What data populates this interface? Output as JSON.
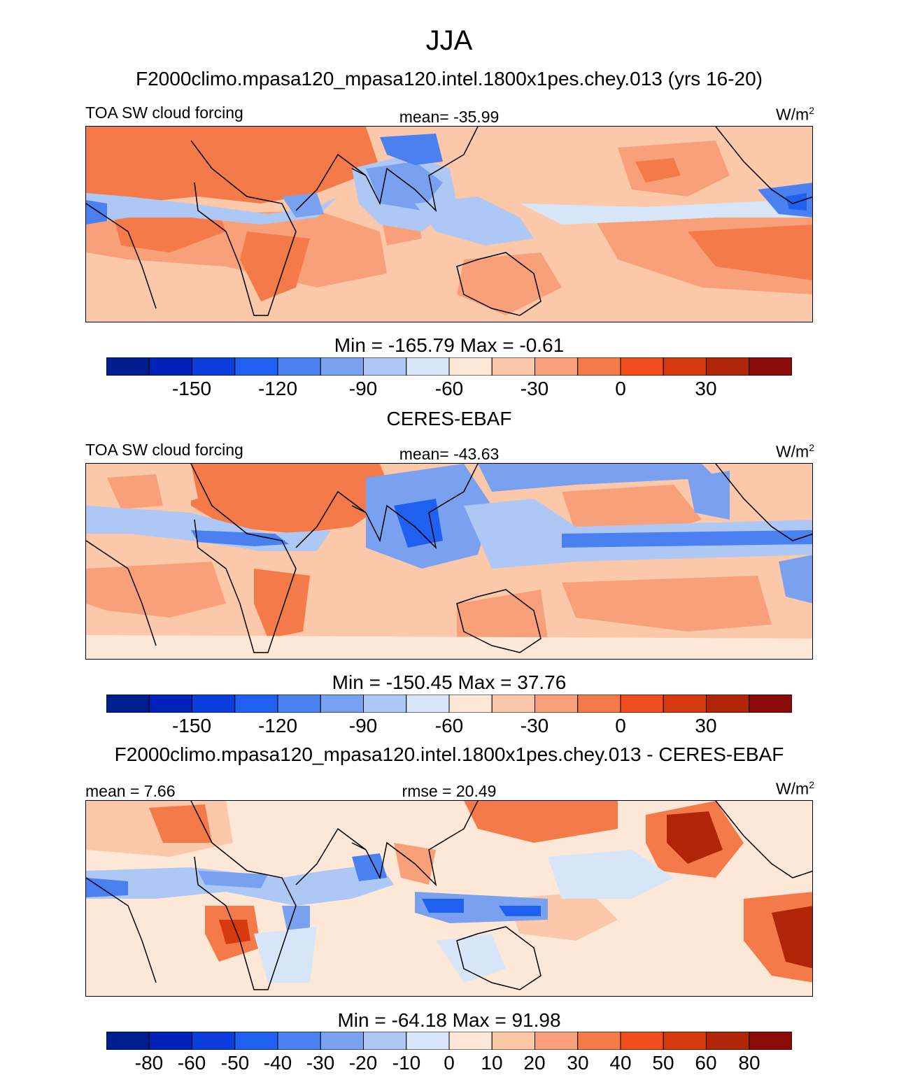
{
  "title": "JJA",
  "panels": [
    {
      "header": "F2000climo.mpasa120_mpasa120.intel.1800x1pes.chey.013 (yrs 16-20)",
      "left_label": "TOA SW cloud forcing",
      "center_label": "mean= -35.99",
      "units": "W/m",
      "units_sup": "2",
      "minmax": "Min = -165.79 Max =  -0.61"
    },
    {
      "header": "CERES-EBAF",
      "left_label": "TOA SW cloud forcing",
      "center_label": "mean= -43.63",
      "units": "W/m",
      "units_sup": "2",
      "minmax": "Min = -150.45 Max =  37.76"
    },
    {
      "header": "F2000climo.mpasa120_mpasa120.intel.1800x1pes.chey.013 - CERES-EBAF",
      "left_label": "mean =   7.66",
      "center_label": "rmse =  20.49",
      "units": "W/m",
      "units_sup": "2",
      "minmax": "Min = -64.18 Max =  91.98"
    }
  ],
  "colorbar_abs": {
    "colors": [
      "#001f8f",
      "#0022b8",
      "#0a3ddc",
      "#2060f0",
      "#4a80f0",
      "#7aa0f0",
      "#aec8f5",
      "#d6e6f8",
      "#fde8d8",
      "#fcc8aa",
      "#f8a07a",
      "#f57a4a",
      "#f04e1e",
      "#d83a10",
      "#b02408",
      "#8a0a0a"
    ],
    "tick_labels": [
      "-150",
      "-120",
      "-90",
      "-60",
      "-30",
      "0",
      "30"
    ]
  },
  "colorbar_diff": {
    "colors": [
      "#001f8f",
      "#0022b8",
      "#0a3ddc",
      "#2060f0",
      "#4a80f0",
      "#7aa0f0",
      "#aec8f5",
      "#d6e6f8",
      "#fde8d8",
      "#fcc8aa",
      "#f8a07a",
      "#f57a4a",
      "#f04e1e",
      "#d83a10",
      "#b02408",
      "#8a0a0a"
    ],
    "tick_labels": [
      "-80",
      "-60",
      "-50",
      "-40",
      "-30",
      "-20",
      "-10",
      "0",
      "10",
      "20",
      "30",
      "40",
      "50",
      "60",
      "80"
    ]
  },
  "chart_data": [
    {
      "type": "heatmap",
      "title": "TOA SW cloud forcing",
      "subtitle": "F2000climo.mpasa120_mpasa120.intel.1800x1pes.chey.013 (yrs 16-20)",
      "units": "W/m2",
      "mean": -35.99,
      "min": -165.79,
      "max": -0.61,
      "colorbar_levels": [
        -165,
        -150,
        -135,
        -120,
        -105,
        -90,
        -75,
        -60,
        -45,
        -30,
        -15,
        0,
        15,
        30,
        45
      ]
    },
    {
      "type": "heatmap",
      "title": "TOA SW cloud forcing",
      "subtitle": "CERES-EBAF",
      "units": "W/m2",
      "mean": -43.63,
      "min": -150.45,
      "max": 37.76,
      "colorbar_levels": [
        -165,
        -150,
        -135,
        -120,
        -105,
        -90,
        -75,
        -60,
        -45,
        -30,
        -15,
        0,
        15,
        30,
        45
      ]
    },
    {
      "type": "heatmap",
      "title": "F2000climo.mpasa120_mpasa120.intel.1800x1pes.chey.013 - CERES-EBAF",
      "units": "W/m2",
      "mean": 7.66,
      "rmse": 20.49,
      "min": -64.18,
      "max": 91.98,
      "colorbar_levels": [
        -80,
        -60,
        -50,
        -40,
        -30,
        -20,
        -10,
        0,
        10,
        20,
        30,
        40,
        50,
        60,
        80
      ]
    }
  ]
}
